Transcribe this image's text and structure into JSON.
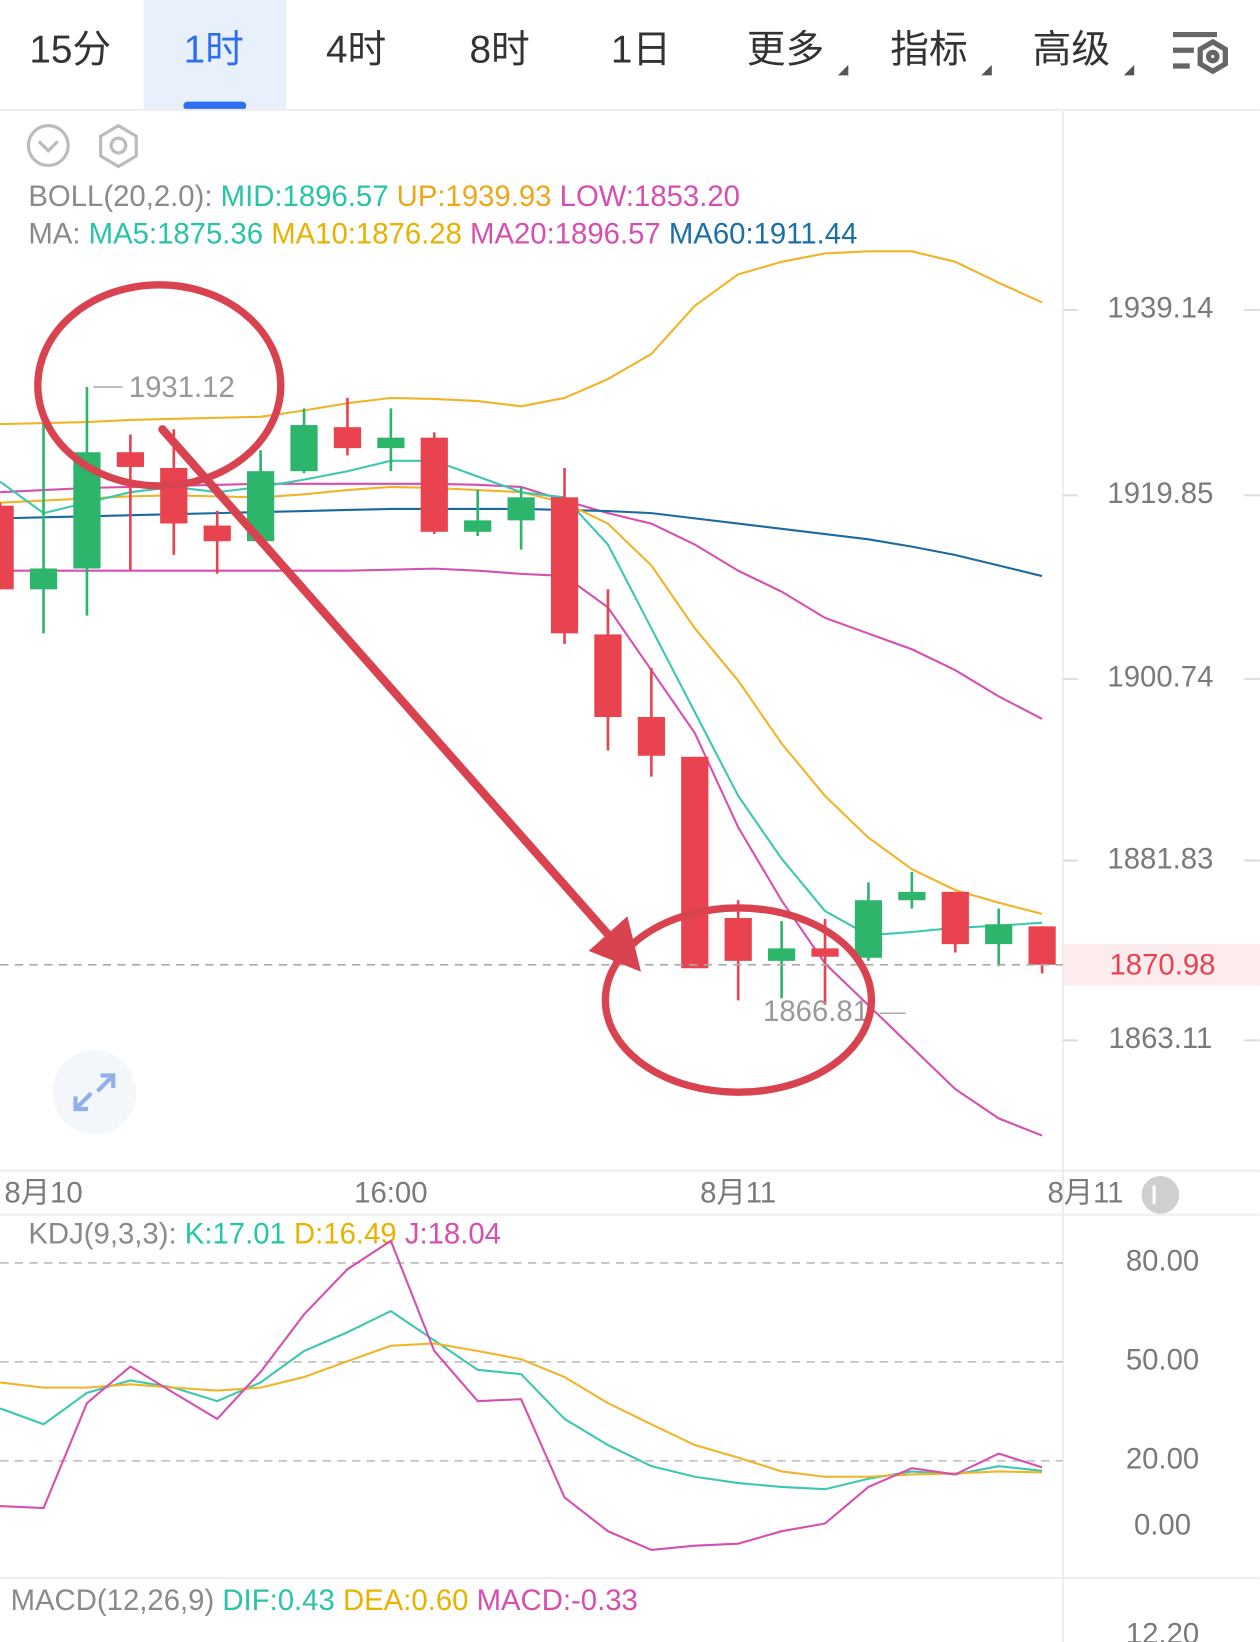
{
  "tabs": [
    "15分",
    "1时",
    "4时",
    "8时",
    "1日",
    "更多",
    "指标",
    "高级"
  ],
  "chart_data": {
    "type": "candlestick",
    "boll_legend": {
      "title": "BOLL(20,2.0):",
      "items": [
        "MID:1896.57",
        "UP:1939.93",
        "LOW:1853.20"
      ]
    },
    "ma_legend": {
      "title": "MA:",
      "items": [
        "MA5:1875.36",
        "MA10:1876.28",
        "MA20:1896.57",
        "MA60:1911.44"
      ]
    },
    "categories": [
      null,
      "8月10",
      null,
      null,
      null,
      null,
      null,
      null,
      null,
      "16:00",
      null,
      null,
      null,
      null,
      null,
      null,
      null,
      "8月11",
      null,
      null,
      null,
      null,
      null,
      null,
      null
    ],
    "x_edge_label": "8月11",
    "up_color": "#2db56b",
    "down_color": "#e8434f",
    "candles": {
      "open": [
        1918.77,
        1910.06,
        1912.23,
        1924.33,
        1922.69,
        1916.7,
        1915.07,
        1922.36,
        1926.94,
        1924.76,
        1925.85,
        1916.05,
        1917.24,
        1919.64,
        1905.37,
        1896.77,
        1892.63,
        1875.85,
        1871.39,
        1872.69,
        1871.71,
        1877.7,
        1878.57,
        1873.13,
        1874.98
      ],
      "high": [
        1919.1,
        1927.81,
        1931.12,
        1926.18,
        1926.72,
        1918.23,
        1924.54,
        1928.9,
        1929.99,
        1928.9,
        1926.4,
        1920.4,
        1920.73,
        1922.69,
        1910.06,
        1901.89,
        1892.63,
        1877.7,
        1875.52,
        1875.74,
        1879.56,
        1880.64,
        1878.57,
        1876.83,
        1874.98
      ],
      "low": [
        1910.06,
        1905.48,
        1907.33,
        1912.02,
        1913.65,
        1911.69,
        1914.74,
        1922.15,
        1924.0,
        1922.36,
        1915.83,
        1915.61,
        1914.2,
        1904.39,
        1893.28,
        1890.56,
        1870.62,
        1867.27,
        1867.5,
        1866.81,
        1871.39,
        1876.83,
        1872.26,
        1870.84,
        1870.08
      ],
      "close": [
        1910.06,
        1912.23,
        1924.33,
        1922.8,
        1916.92,
        1915.07,
        1922.36,
        1927.16,
        1924.76,
        1925.85,
        1916.05,
        1917.24,
        1919.64,
        1905.48,
        1896.77,
        1892.74,
        1870.62,
        1871.39,
        1872.69,
        1871.82,
        1877.7,
        1878.57,
        1873.13,
        1875.2,
        1870.98
      ]
    },
    "lines": [
      {
        "name": "UP:1939.93",
        "color": "#f0b429",
        "values": [
          1927.26,
          1927.37,
          1927.48,
          1927.7,
          1927.81,
          1927.91,
          1928.02,
          1928.68,
          1929.44,
          1929.98,
          1929.88,
          1929.66,
          1929.11,
          1929.98,
          1931.95,
          1934.56,
          1939.58,
          1942.85,
          1944.15,
          1945.03,
          1945.24,
          1945.24,
          1944.15,
          1941.97,
          1939.93
        ]
      },
      {
        "name": "LOW:1853.20",
        "color": "#d64fb0",
        "values": [
          1912.0,
          1912.0,
          1912.0,
          1912.0,
          1912.0,
          1912.0,
          1912.0,
          1912.0,
          1912.0,
          1912.11,
          1912.22,
          1912.0,
          1911.67,
          1911.45,
          1908.18,
          1901.64,
          1895.1,
          1885.29,
          1877.66,
          1871.12,
          1866.76,
          1862.4,
          1858.04,
          1854.99,
          1853.2
        ]
      },
      {
        "name": "MA20:1896.57",
        "color": "#d64fb0",
        "values": [
          1920.17,
          1920.39,
          1920.61,
          1920.72,
          1920.83,
          1920.94,
          1921.05,
          1921.05,
          1921.05,
          1921.05,
          1921.05,
          1920.94,
          1920.72,
          1919.3,
          1917.99,
          1916.9,
          1914.72,
          1912.0,
          1909.82,
          1907.09,
          1905.46,
          1903.82,
          1901.64,
          1898.92,
          1896.57
        ]
      },
      {
        "name": "MA60:1911.44",
        "color": "#1a6aa0",
        "values": [
          1917.45,
          1917.56,
          1917.67,
          1917.78,
          1917.89,
          1917.99,
          1918.1,
          1918.21,
          1918.32,
          1918.43,
          1918.43,
          1918.43,
          1918.43,
          1918.32,
          1918.21,
          1917.99,
          1917.45,
          1916.9,
          1916.36,
          1915.81,
          1915.27,
          1914.51,
          1913.63,
          1912.54,
          1911.44
        ]
      },
      {
        "name": "MA10:1876.28",
        "color": "#f0b429",
        "values": [
          1919.08,
          1919.3,
          1919.52,
          1919.74,
          1919.85,
          1919.74,
          1919.63,
          1919.96,
          1920.39,
          1920.72,
          1920.61,
          1920.39,
          1920.17,
          1919.08,
          1916.9,
          1912.54,
          1906.0,
          1900.55,
          1894.01,
          1888.56,
          1884.2,
          1880.93,
          1878.75,
          1877.45,
          1876.28
        ]
      },
      {
        "name": "MA5:1875.36",
        "color": "#3cc8b0",
        "values": [
          1921.26,
          1917.99,
          1919.08,
          1920.17,
          1920.72,
          1920.17,
          1920.72,
          1921.48,
          1922.35,
          1923.44,
          1923.44,
          1921.81,
          1920.17,
          1919.63,
          1914.72,
          1906.0,
          1897.28,
          1888.56,
          1882.02,
          1876.57,
          1874.07,
          1874.39,
          1874.83,
          1875.05,
          1875.36
        ]
      }
    ],
    "ylim": [
      1849.54,
      1959.96
    ],
    "yticks": [
      1939.14,
      1919.85,
      1900.74,
      1881.83,
      1863.11
    ],
    "kdj": {
      "title": "KDJ(9,3,3):",
      "ylim": [
        -14.9,
        94.6
      ],
      "yticks": [
        {
          "value": 80,
          "label": "80.00"
        },
        {
          "value": 50,
          "label": "50.00"
        },
        {
          "value": 20,
          "label": "20.00"
        },
        {
          "value": 0,
          "label": "0.00"
        }
      ],
      "series": [
        {
          "name": "K:17.01",
          "color": "#3cc8b0",
          "values": [
            35.9,
            31.1,
            40.6,
            44.4,
            42.2,
            38.1,
            43.8,
            53.3,
            59.0,
            65.4,
            56.5,
            47.6,
            46.3,
            32.7,
            24.8,
            18.4,
            15.2,
            13.3,
            12.1,
            11.4,
            14.6,
            16.8,
            15.9,
            18.4,
            17.01
          ]
        },
        {
          "name": "D:16.49",
          "color": "#f0b429",
          "values": [
            43.8,
            42.2,
            42.2,
            43.2,
            42.2,
            41.3,
            42.2,
            45.4,
            50.2,
            54.9,
            55.6,
            53.3,
            50.8,
            45.4,
            37.5,
            31.1,
            24.8,
            21.0,
            16.8,
            15.2,
            15.2,
            15.9,
            16.2,
            16.8,
            16.49
          ]
        },
        {
          "name": "J:18.04",
          "color": "#d64fb0",
          "values": [
            6.3,
            5.7,
            37.5,
            48.6,
            40.6,
            32.7,
            47.0,
            64.4,
            78.1,
            86.7,
            53.3,
            38.1,
            38.7,
            8.9,
            -1.3,
            -7.0,
            -5.7,
            -5.1,
            -1.3,
            1.0,
            12.1,
            17.8,
            15.9,
            22.2,
            18.04
          ]
        }
      ]
    },
    "macd": {
      "title": "MACD(12,26,9)",
      "items": [
        "DIF:0.43",
        "DEA:0.60",
        "MACD:-0.33"
      ],
      "axis_label": "12.20"
    }
  }
}
